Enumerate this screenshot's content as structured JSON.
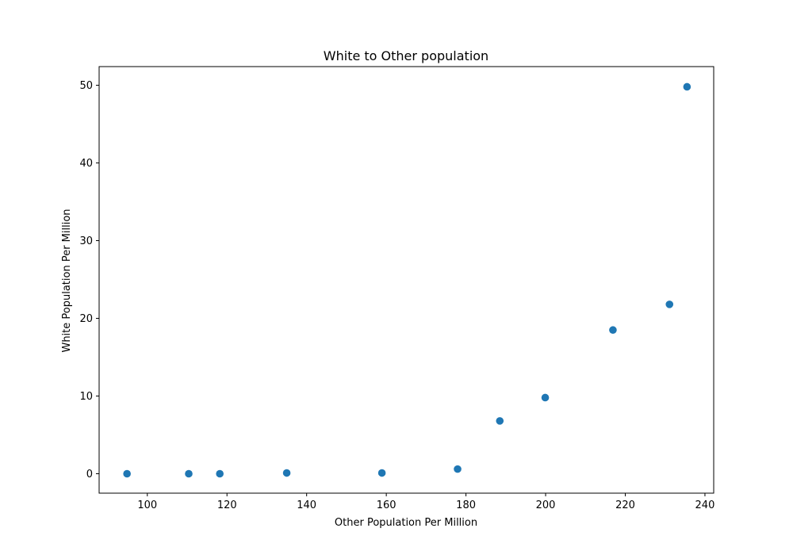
{
  "chart_data": {
    "type": "scatter",
    "title": "White to Other population",
    "xlabel": "Other Population Per Million",
    "ylabel": "White Population Per Million",
    "xlim": [
      87.9,
      242.2
    ],
    "ylim": [
      -2.5,
      52.4
    ],
    "xticks": [
      100,
      120,
      140,
      160,
      180,
      200,
      220,
      240
    ],
    "yticks": [
      0,
      10,
      20,
      30,
      40,
      50
    ],
    "grid": false,
    "marker_color": "#1f77b4",
    "points": [
      {
        "x": 94.9,
        "y": 0.0
      },
      {
        "x": 110.4,
        "y": 0.0
      },
      {
        "x": 118.2,
        "y": 0.0
      },
      {
        "x": 135.0,
        "y": 0.1
      },
      {
        "x": 158.9,
        "y": 0.1
      },
      {
        "x": 177.9,
        "y": 0.6
      },
      {
        "x": 188.5,
        "y": 6.8
      },
      {
        "x": 199.9,
        "y": 9.8
      },
      {
        "x": 216.9,
        "y": 18.5
      },
      {
        "x": 231.1,
        "y": 21.8
      },
      {
        "x": 235.5,
        "y": 49.8
      }
    ]
  }
}
